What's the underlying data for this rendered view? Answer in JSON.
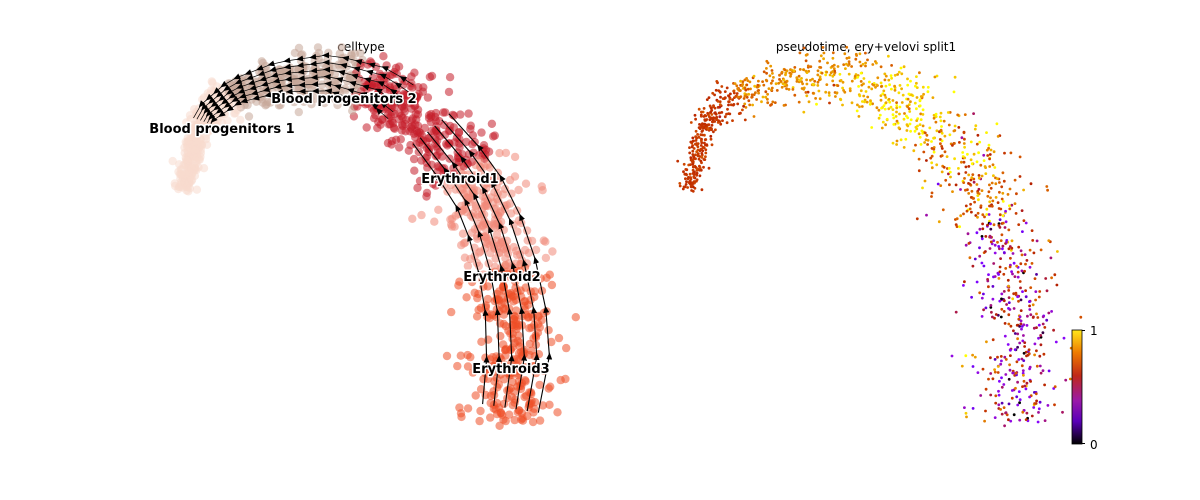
{
  "chart_data": [
    {
      "type": "scatter",
      "title": "celltype",
      "overlay": "velocity stream lines",
      "axes": "off",
      "grid": false,
      "clusters": [
        {
          "name": "Blood progenitors 1",
          "color": "#f7dbcd"
        },
        {
          "name": "Blood progenitors 2",
          "color": "#c7a899"
        },
        {
          "name": "Erythroid1",
          "color": "#c41e2a"
        },
        {
          "name": "Erythroid2",
          "color": "#f08878"
        },
        {
          "name": "Erythroid3",
          "color": "#ef4f26"
        }
      ]
    },
    {
      "type": "scatter",
      "title": "pseudotime, ery+velovi split1",
      "axes": "off",
      "grid": false,
      "colormap": "gnuplot",
      "colorbar": {
        "min_label": "0",
        "max_label": "1",
        "range": [
          0,
          1
        ],
        "placement": "right"
      },
      "trend": "pseudotime high (0.8-1) along upper arc, low (0.2-0.5) at lower tail, ~0.6 at left tip"
    }
  ]
}
